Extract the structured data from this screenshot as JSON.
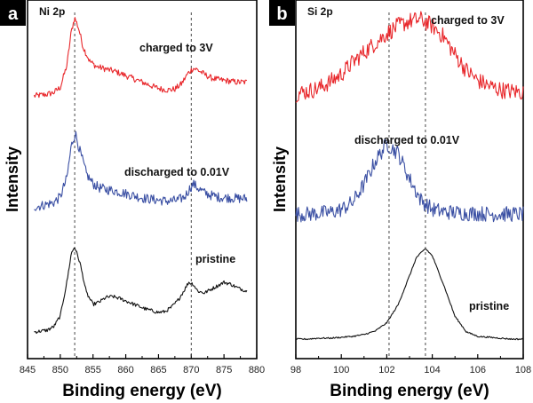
{
  "chart_data": [
    {
      "panel": "a",
      "type": "line",
      "title": "Ni 2p",
      "xlabel": "Binding energy (eV)",
      "ylabel": "Intensity",
      "xlim": [
        845,
        880
      ],
      "xticks": [
        "845",
        "850",
        "855",
        "860",
        "865",
        "870",
        "875",
        "880"
      ],
      "reference_lines": [
        852.2,
        870.0
      ],
      "series": [
        {
          "name": "charged to 3V",
          "color": "#e8262a",
          "x": [
            846,
            847,
            848,
            849,
            850,
            851,
            851.7,
            852.2,
            852.8,
            853.5,
            854.5,
            855.5,
            856.5,
            857.5,
            858.5,
            859.5,
            860.5,
            861.5,
            862.5,
            863.5,
            864.5,
            865.5,
            866.5,
            867.5,
            868.5,
            869.5,
            870.3,
            871,
            872,
            873,
            874,
            875,
            876,
            877,
            878.5
          ],
          "y": [
            0.1,
            0.11,
            0.12,
            0.14,
            0.2,
            0.45,
            0.85,
            1.0,
            0.88,
            0.66,
            0.5,
            0.44,
            0.42,
            0.4,
            0.38,
            0.35,
            0.32,
            0.29,
            0.26,
            0.23,
            0.2,
            0.18,
            0.17,
            0.18,
            0.24,
            0.36,
            0.42,
            0.4,
            0.35,
            0.31,
            0.29,
            0.28,
            0.27,
            0.26,
            0.26
          ]
        },
        {
          "name": "discharged to 0.01V",
          "color": "#3a4fa3",
          "x": [
            846,
            847,
            848,
            849,
            850,
            851,
            851.7,
            852.3,
            853,
            854,
            855,
            856,
            857,
            858,
            859,
            860,
            861,
            862,
            863,
            864,
            865,
            866,
            867,
            868,
            869,
            869.6,
            870.3,
            871,
            872,
            873,
            874,
            875,
            876,
            877,
            878.5
          ],
          "y": [
            0.1,
            0.11,
            0.13,
            0.15,
            0.22,
            0.45,
            0.85,
            1.0,
            0.78,
            0.5,
            0.38,
            0.33,
            0.31,
            0.3,
            0.28,
            0.26,
            0.24,
            0.22,
            0.2,
            0.19,
            0.18,
            0.17,
            0.17,
            0.18,
            0.22,
            0.3,
            0.38,
            0.33,
            0.27,
            0.24,
            0.22,
            0.21,
            0.21,
            0.2,
            0.2
          ]
        },
        {
          "name": "pristine",
          "color": "#111111",
          "x": [
            846,
            847,
            848,
            849,
            850,
            851,
            851.7,
            852.2,
            853,
            854,
            855,
            856,
            857,
            858,
            859,
            860,
            861,
            862,
            863,
            864,
            865,
            866,
            867,
            868,
            869,
            869.6,
            870.3,
            871,
            872,
            873,
            874,
            875,
            876,
            877,
            878.5
          ],
          "y": [
            0.04,
            0.05,
            0.06,
            0.1,
            0.22,
            0.6,
            0.93,
            1.0,
            0.82,
            0.48,
            0.35,
            0.38,
            0.43,
            0.44,
            0.42,
            0.39,
            0.36,
            0.33,
            0.3,
            0.28,
            0.26,
            0.27,
            0.32,
            0.4,
            0.52,
            0.6,
            0.58,
            0.5,
            0.48,
            0.52,
            0.56,
            0.6,
            0.58,
            0.54,
            0.5
          ]
        }
      ]
    },
    {
      "panel": "b",
      "type": "line",
      "title": "Si 2p",
      "xlabel": "Binding energy (eV)",
      "ylabel": "Intensity",
      "xlim": [
        98,
        108
      ],
      "xticks": [
        "98",
        "100",
        "102",
        "104",
        "106",
        "108"
      ],
      "reference_lines": [
        102.1,
        103.7
      ],
      "series": [
        {
          "name": "charged to 3V",
          "color": "#e8262a",
          "x": [
            98,
            98.5,
            99,
            99.5,
            100,
            100.5,
            101,
            101.5,
            102,
            102.5,
            103,
            103.5,
            104,
            104.5,
            105,
            105.5,
            106,
            106.5,
            107,
            107.5,
            108
          ],
          "y": [
            0.05,
            0.08,
            0.12,
            0.2,
            0.3,
            0.45,
            0.58,
            0.7,
            0.82,
            0.92,
            0.98,
            1.0,
            0.92,
            0.78,
            0.55,
            0.35,
            0.22,
            0.15,
            0.1,
            0.08,
            0.07
          ]
        },
        {
          "name": "discharged to 0.01V",
          "color": "#3a4fa3",
          "x": [
            98,
            98.5,
            99,
            99.5,
            100,
            100.5,
            101,
            101.5,
            102,
            102.5,
            103,
            103.5,
            104,
            104.5,
            105,
            105.5,
            106,
            106.5,
            107,
            107.5,
            108
          ],
          "y": [
            0.1,
            0.1,
            0.11,
            0.12,
            0.16,
            0.25,
            0.48,
            0.78,
            1.0,
            0.88,
            0.55,
            0.28,
            0.16,
            0.13,
            0.12,
            0.11,
            0.11,
            0.1,
            0.1,
            0.1,
            0.1
          ]
        },
        {
          "name": "pristine",
          "color": "#111111",
          "x": [
            98,
            98.5,
            99,
            99.5,
            100,
            100.5,
            101,
            101.5,
            102,
            102.5,
            103,
            103.3,
            103.7,
            104,
            104.5,
            105,
            105.5,
            106,
            106.5,
            107,
            107.5,
            108
          ],
          "y": [
            0.0,
            0.0,
            0.01,
            0.01,
            0.02,
            0.03,
            0.05,
            0.09,
            0.18,
            0.38,
            0.7,
            0.9,
            1.0,
            0.92,
            0.6,
            0.25,
            0.08,
            0.03,
            0.02,
            0.01,
            0.0,
            0.0
          ]
        }
      ]
    }
  ]
}
